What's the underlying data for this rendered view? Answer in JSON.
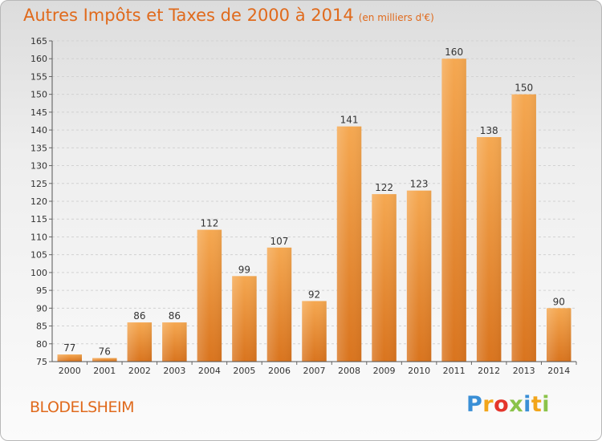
{
  "chart_data": {
    "type": "bar",
    "title": "Autres Impôts et Taxes de 2000 à 2014",
    "subtitle": "(en milliers d'€)",
    "categories": [
      "2000",
      "2001",
      "2002",
      "2003",
      "2004",
      "2005",
      "2006",
      "2007",
      "2008",
      "2009",
      "2010",
      "2011",
      "2012",
      "2013",
      "2014"
    ],
    "values": [
      77,
      76,
      86,
      86,
      112,
      99,
      107,
      92,
      141,
      122,
      123,
      160,
      138,
      150,
      90
    ],
    "ylim": [
      75,
      165
    ],
    "yticks": [
      75,
      80,
      85,
      90,
      95,
      100,
      105,
      110,
      115,
      120,
      125,
      130,
      135,
      140,
      145,
      150,
      155,
      160,
      165
    ],
    "grid": true,
    "legend": "none",
    "bar_color": "#f2a34a",
    "bar_color_dark": "#d9741e"
  },
  "footer": {
    "commune": "BLODELSHEIM",
    "logo_letters": [
      "P",
      "r",
      "o",
      "x",
      "i",
      "t",
      "i"
    ]
  }
}
